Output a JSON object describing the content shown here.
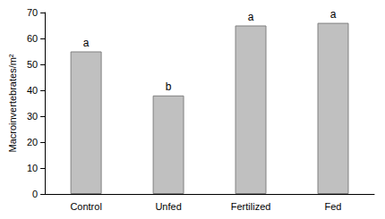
{
  "chart_data": {
    "type": "bar",
    "y_label": "Macroinvertebrates/m²",
    "categories": [
      "Control",
      "Unfed",
      "Fertilized",
      "Fed"
    ],
    "values": [
      55,
      38,
      65,
      66
    ],
    "annotations": [
      "a",
      "b",
      "a",
      "a"
    ],
    "color": "#c0c0c0",
    "ylim": [
      0,
      70
    ],
    "yticks": [
      0,
      10,
      20,
      30,
      40,
      50,
      60,
      70
    ],
    "grid": false
  }
}
